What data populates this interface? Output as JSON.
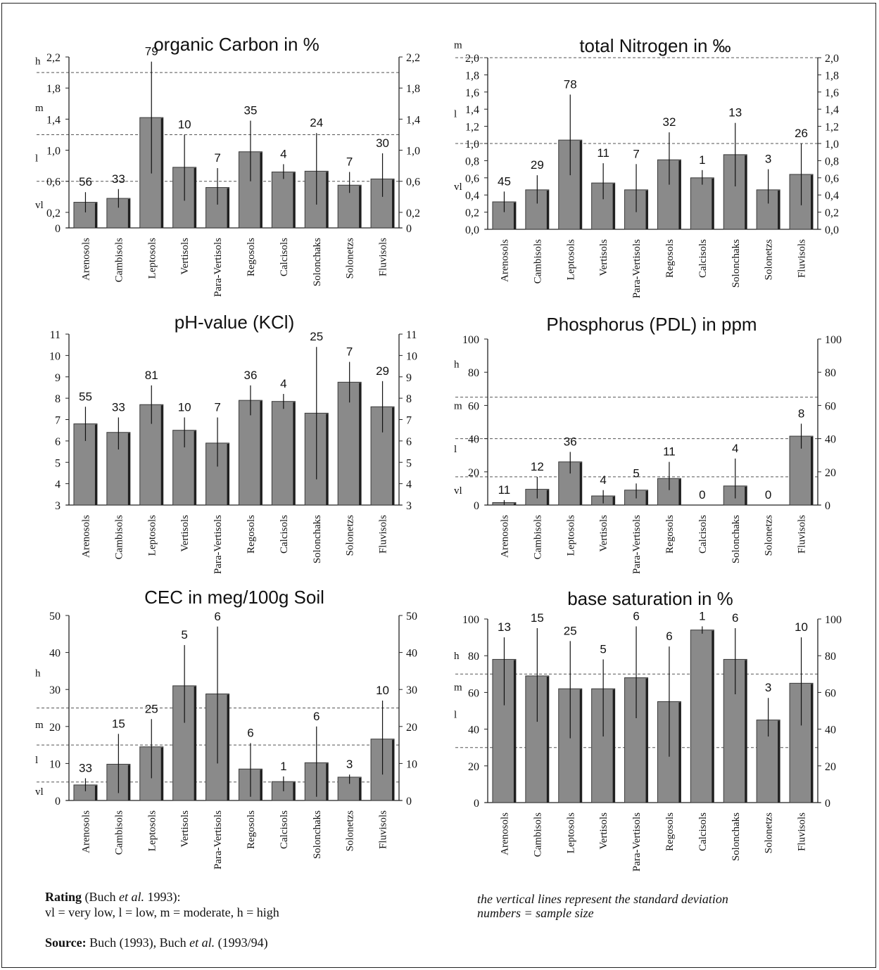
{
  "chart_data": [
    {
      "type": "bar",
      "title": "organic Carbon in %",
      "categories": [
        "Arenosols",
        "Cambisols",
        "Leptosols",
        "Vertisols",
        "Para-Vertisols",
        "Regosols",
        "Calcisols",
        "Solonchaks",
        "Solonetzs",
        "Fluvisols"
      ],
      "values": [
        0.33,
        0.38,
        1.42,
        0.78,
        0.52,
        0.98,
        0.72,
        0.73,
        0.55,
        0.63
      ],
      "std_dev": [
        [
          0.2,
          0.46
        ],
        [
          0.26,
          0.5
        ],
        [
          0.7,
          2.14
        ],
        [
          0.35,
          1.2
        ],
        [
          0.3,
          0.77
        ],
        [
          0.6,
          1.38
        ],
        [
          0.63,
          0.82
        ],
        [
          0.3,
          1.22
        ],
        [
          0.45,
          0.72
        ],
        [
          0.4,
          0.96
        ]
      ],
      "sample_size": [
        "56",
        "33",
        "79",
        "10",
        "7",
        "35",
        "4",
        "24",
        "7",
        "30"
      ],
      "ylim": [
        0,
        2.2
      ],
      "left_ticks": [
        "0",
        "0,2",
        "0,6",
        "1,0",
        "1,4",
        "1,8",
        "2,2"
      ],
      "left_tick_values": [
        0,
        0.2,
        0.6,
        1.0,
        1.4,
        1.8,
        2.2
      ],
      "right_ticks": [
        "0",
        "0,2",
        "0,6",
        "1,0",
        "1,4",
        "1,8",
        "2,2"
      ],
      "right_tick_values": [
        0,
        0.2,
        0.6,
        1.0,
        1.4,
        1.8,
        2.2
      ],
      "rating_lines": [
        0.6,
        1.2,
        2.0
      ],
      "rating_labels": [
        {
          "text": "vl",
          "y": 0.3
        },
        {
          "text": "l",
          "y": 0.9
        },
        {
          "text": "m",
          "y": 1.55
        },
        {
          "text": "h",
          "y": 2.15
        }
      ]
    },
    {
      "type": "bar",
      "title": "total Nitrogen in ‰",
      "categories": [
        "Arenosols",
        "Cambisols",
        "Leptosols",
        "Vertisols",
        "Para-Vertisols",
        "Regosols",
        "Calcisols",
        "Solonchaks",
        "Solonetzs",
        "Fluvisols"
      ],
      "values": [
        0.32,
        0.46,
        1.04,
        0.54,
        0.46,
        0.81,
        0.6,
        0.87,
        0.46,
        0.64
      ],
      "std_dev": [
        [
          0.2,
          0.44
        ],
        [
          0.3,
          0.63
        ],
        [
          0.63,
          1.57
        ],
        [
          0.35,
          0.77
        ],
        [
          0.2,
          0.76
        ],
        [
          0.52,
          1.13
        ],
        [
          0.52,
          0.69
        ],
        [
          0.5,
          1.24
        ],
        [
          0.3,
          0.7
        ],
        [
          0.28,
          1.0
        ]
      ],
      "sample_size": [
        "45",
        "29",
        "78",
        "11",
        "7",
        "32",
        "1",
        "13",
        "3",
        "26"
      ],
      "ylim": [
        0,
        2.0
      ],
      "left_ticks": [
        "0,0",
        "0,2",
        "0,4",
        "0,6",
        "0,8",
        "1,0",
        "1,2",
        "1,4",
        "1,6",
        "1,8",
        "2,0"
      ],
      "left_tick_values": [
        0,
        0.2,
        0.4,
        0.6,
        0.8,
        1.0,
        1.2,
        1.4,
        1.6,
        1.8,
        2.0
      ],
      "right_ticks": [
        "0,0",
        "0,2",
        "0,4",
        "0,6",
        "0,8",
        "1,0",
        "1,2",
        "1,4",
        "1,6",
        "1,8",
        "2,0"
      ],
      "right_tick_values": [
        0,
        0.2,
        0.4,
        0.6,
        0.8,
        1.0,
        1.2,
        1.4,
        1.6,
        1.8,
        2.0
      ],
      "rating_lines": [
        1.0,
        2.0
      ],
      "rating_labels": [
        {
          "text": "vl",
          "y": 0.5
        },
        {
          "text": "l",
          "y": 1.35
        },
        {
          "text": "m",
          "y": 2.15
        }
      ]
    },
    {
      "type": "bar",
      "title": "pH-value (KCl)",
      "categories": [
        "Arenosols",
        "Cambisols",
        "Leptosols",
        "Vertisols",
        "Para-Vertisols",
        "Regosols",
        "Calcisols",
        "Solonchaks",
        "Solonetzs",
        "Fluvisols"
      ],
      "values": [
        6.8,
        6.4,
        7.7,
        6.5,
        5.9,
        7.9,
        7.85,
        7.3,
        8.75,
        7.6
      ],
      "std_dev": [
        [
          6.0,
          7.6
        ],
        [
          5.6,
          7.1
        ],
        [
          6.8,
          8.6
        ],
        [
          5.7,
          7.1
        ],
        [
          4.8,
          7.1
        ],
        [
          7.2,
          8.6
        ],
        [
          7.5,
          8.2
        ],
        [
          4.2,
          10.4
        ],
        [
          7.8,
          9.7
        ],
        [
          6.4,
          8.8
        ]
      ],
      "sample_size": [
        "55",
        "33",
        "81",
        "10",
        "7",
        "36",
        "4",
        "25",
        "7",
        "29"
      ],
      "ylim": [
        3,
        11
      ],
      "left_ticks": [
        "3",
        "4",
        "5",
        "6",
        "7",
        "8",
        "9",
        "10",
        "11"
      ],
      "left_tick_values": [
        3,
        4,
        5,
        6,
        7,
        8,
        9,
        10,
        11
      ],
      "right_ticks": [
        "3",
        "4",
        "5",
        "6",
        "7",
        "8",
        "9",
        "10",
        "11"
      ],
      "right_tick_values": [
        3,
        4,
        5,
        6,
        7,
        8,
        9,
        10,
        11
      ],
      "rating_lines": [],
      "rating_labels": []
    },
    {
      "type": "bar",
      "title": "Phosphorus (PDL) in ppm",
      "categories": [
        "Arenosols",
        "Cambisols",
        "Leptosols",
        "Vertisols",
        "Para-Vertisols",
        "Regosols",
        "Calcisols",
        "Solonchaks",
        "Solonetzs",
        "Fluvisols"
      ],
      "values": [
        1.5,
        9.5,
        26,
        5.5,
        9,
        16,
        0,
        11.5,
        0,
        41.5
      ],
      "std_dev": [
        [
          0,
          3
        ],
        [
          4,
          17
        ],
        [
          19,
          32
        ],
        [
          1,
          9
        ],
        [
          4,
          13
        ],
        [
          9,
          26
        ],
        null,
        [
          4,
          28
        ],
        null,
        [
          34,
          49
        ]
      ],
      "sample_size": [
        "11",
        "12",
        "36",
        "4",
        "5",
        "11",
        "0",
        "4",
        "0",
        "8"
      ],
      "ylim": [
        0,
        100
      ],
      "left_ticks": [
        "0",
        "20",
        "40",
        "60",
        "80",
        "100"
      ],
      "left_tick_values": [
        0,
        20,
        40,
        60,
        80,
        100
      ],
      "right_ticks": [
        "0",
        "20",
        "40",
        "60",
        "80",
        "100"
      ],
      "right_tick_values": [
        0,
        20,
        40,
        60,
        80,
        100
      ],
      "rating_lines": [
        17,
        40,
        65
      ],
      "rating_labels": [
        {
          "text": "vl",
          "y": 9
        },
        {
          "text": "l",
          "y": 34
        },
        {
          "text": "m",
          "y": 60
        },
        {
          "text": "h",
          "y": 85
        }
      ]
    },
    {
      "type": "bar",
      "title": "CEC in meg/100g Soil",
      "categories": [
        "Arenosols",
        "Cambisols",
        "Leptosols",
        "Vertisols",
        "Para-Vertisols",
        "Regosols",
        "Calcisols",
        "Solonchaks",
        "Solonetzs",
        "Fluvisols"
      ],
      "values": [
        4.2,
        9.8,
        14.5,
        31,
        28.8,
        8.5,
        5.1,
        10.2,
        6.3,
        16.6
      ],
      "std_dev": [
        [
          2.5,
          6
        ],
        [
          2,
          18
        ],
        [
          6,
          22
        ],
        [
          21,
          42
        ],
        [
          10,
          47
        ],
        [
          1,
          15.5
        ],
        [
          2.5,
          6.5
        ],
        [
          1,
          20
        ],
        [
          4.5,
          7
        ],
        [
          7,
          27
        ]
      ],
      "sample_size": [
        "33",
        "15",
        "25",
        "5",
        "6",
        "6",
        "1",
        "6",
        "3",
        "10"
      ],
      "ylim": [
        0,
        50
      ],
      "left_ticks": [
        "0",
        "10",
        "20",
        "30",
        "40",
        "50"
      ],
      "left_tick_values": [
        0,
        10,
        20,
        30,
        40,
        50
      ],
      "right_ticks": [
        "0",
        "10",
        "20",
        "30",
        "40",
        "50"
      ],
      "right_tick_values": [
        0,
        10,
        20,
        30,
        40,
        50
      ],
      "rating_lines": [
        5,
        15,
        25
      ],
      "rating_labels": [
        {
          "text": "vl",
          "y": 2.5
        },
        {
          "text": "l",
          "y": 11
        },
        {
          "text": "m",
          "y": 20.5
        },
        {
          "text": "h",
          "y": 34.5
        }
      ]
    },
    {
      "type": "bar",
      "title": "base saturation in %",
      "categories": [
        "Arenosols",
        "Cambisols",
        "Leptosols",
        "Vertisols",
        "Para-Vertisols",
        "Regosols",
        "Calcisols",
        "Solonchaks",
        "Solonetzs",
        "Fluvisols"
      ],
      "values": [
        78,
        69,
        62,
        62,
        68,
        55,
        94,
        78,
        45,
        65
      ],
      "std_dev": [
        [
          53,
          90
        ],
        [
          44,
          95
        ],
        [
          35,
          88
        ],
        [
          36,
          78
        ],
        [
          46,
          96
        ],
        [
          25,
          85
        ],
        [
          92,
          96
        ],
        [
          59,
          95
        ],
        [
          36,
          57
        ],
        [
          42,
          90
        ]
      ],
      "sample_size": [
        "13",
        "15",
        "25",
        "5",
        "6",
        "6",
        "1",
        "6",
        "3",
        "10"
      ],
      "ylim": [
        0,
        100
      ],
      "left_ticks": [
        "0",
        "20",
        "40",
        "60",
        "80",
        "100"
      ],
      "left_tick_values": [
        0,
        20,
        40,
        60,
        80,
        100
      ],
      "right_ticks": [
        "0",
        "20",
        "40",
        "60",
        "80",
        "100"
      ],
      "right_tick_values": [
        0,
        20,
        40,
        60,
        80,
        100
      ],
      "rating_lines": [
        30,
        70
      ],
      "rating_labels": [
        {
          "text": "l",
          "y": 48
        },
        {
          "text": "m",
          "y": 63
        },
        {
          "text": "h",
          "y": 80
        }
      ]
    }
  ],
  "notes": {
    "rating_bold": "Rating",
    "rating_rest": " (Buch ",
    "rating_etal": "et al.",
    "rating_year": " 1993):",
    "rating_legend": "vl = very low, l = low, m = moderate, h = high",
    "source_bold": "Source:",
    "source_rest": " Buch (1993), Buch ",
    "source_etal": "et al.",
    "source_year": " (1993/94)",
    "caption_line1": "the vertical lines represent the standard deviation",
    "caption_line2": "numbers = sample size"
  },
  "colors": {
    "bar": "#8a8a8a",
    "bar_shadow": "#1e1e1e",
    "axis": "#222222",
    "dashed": "#555555"
  }
}
